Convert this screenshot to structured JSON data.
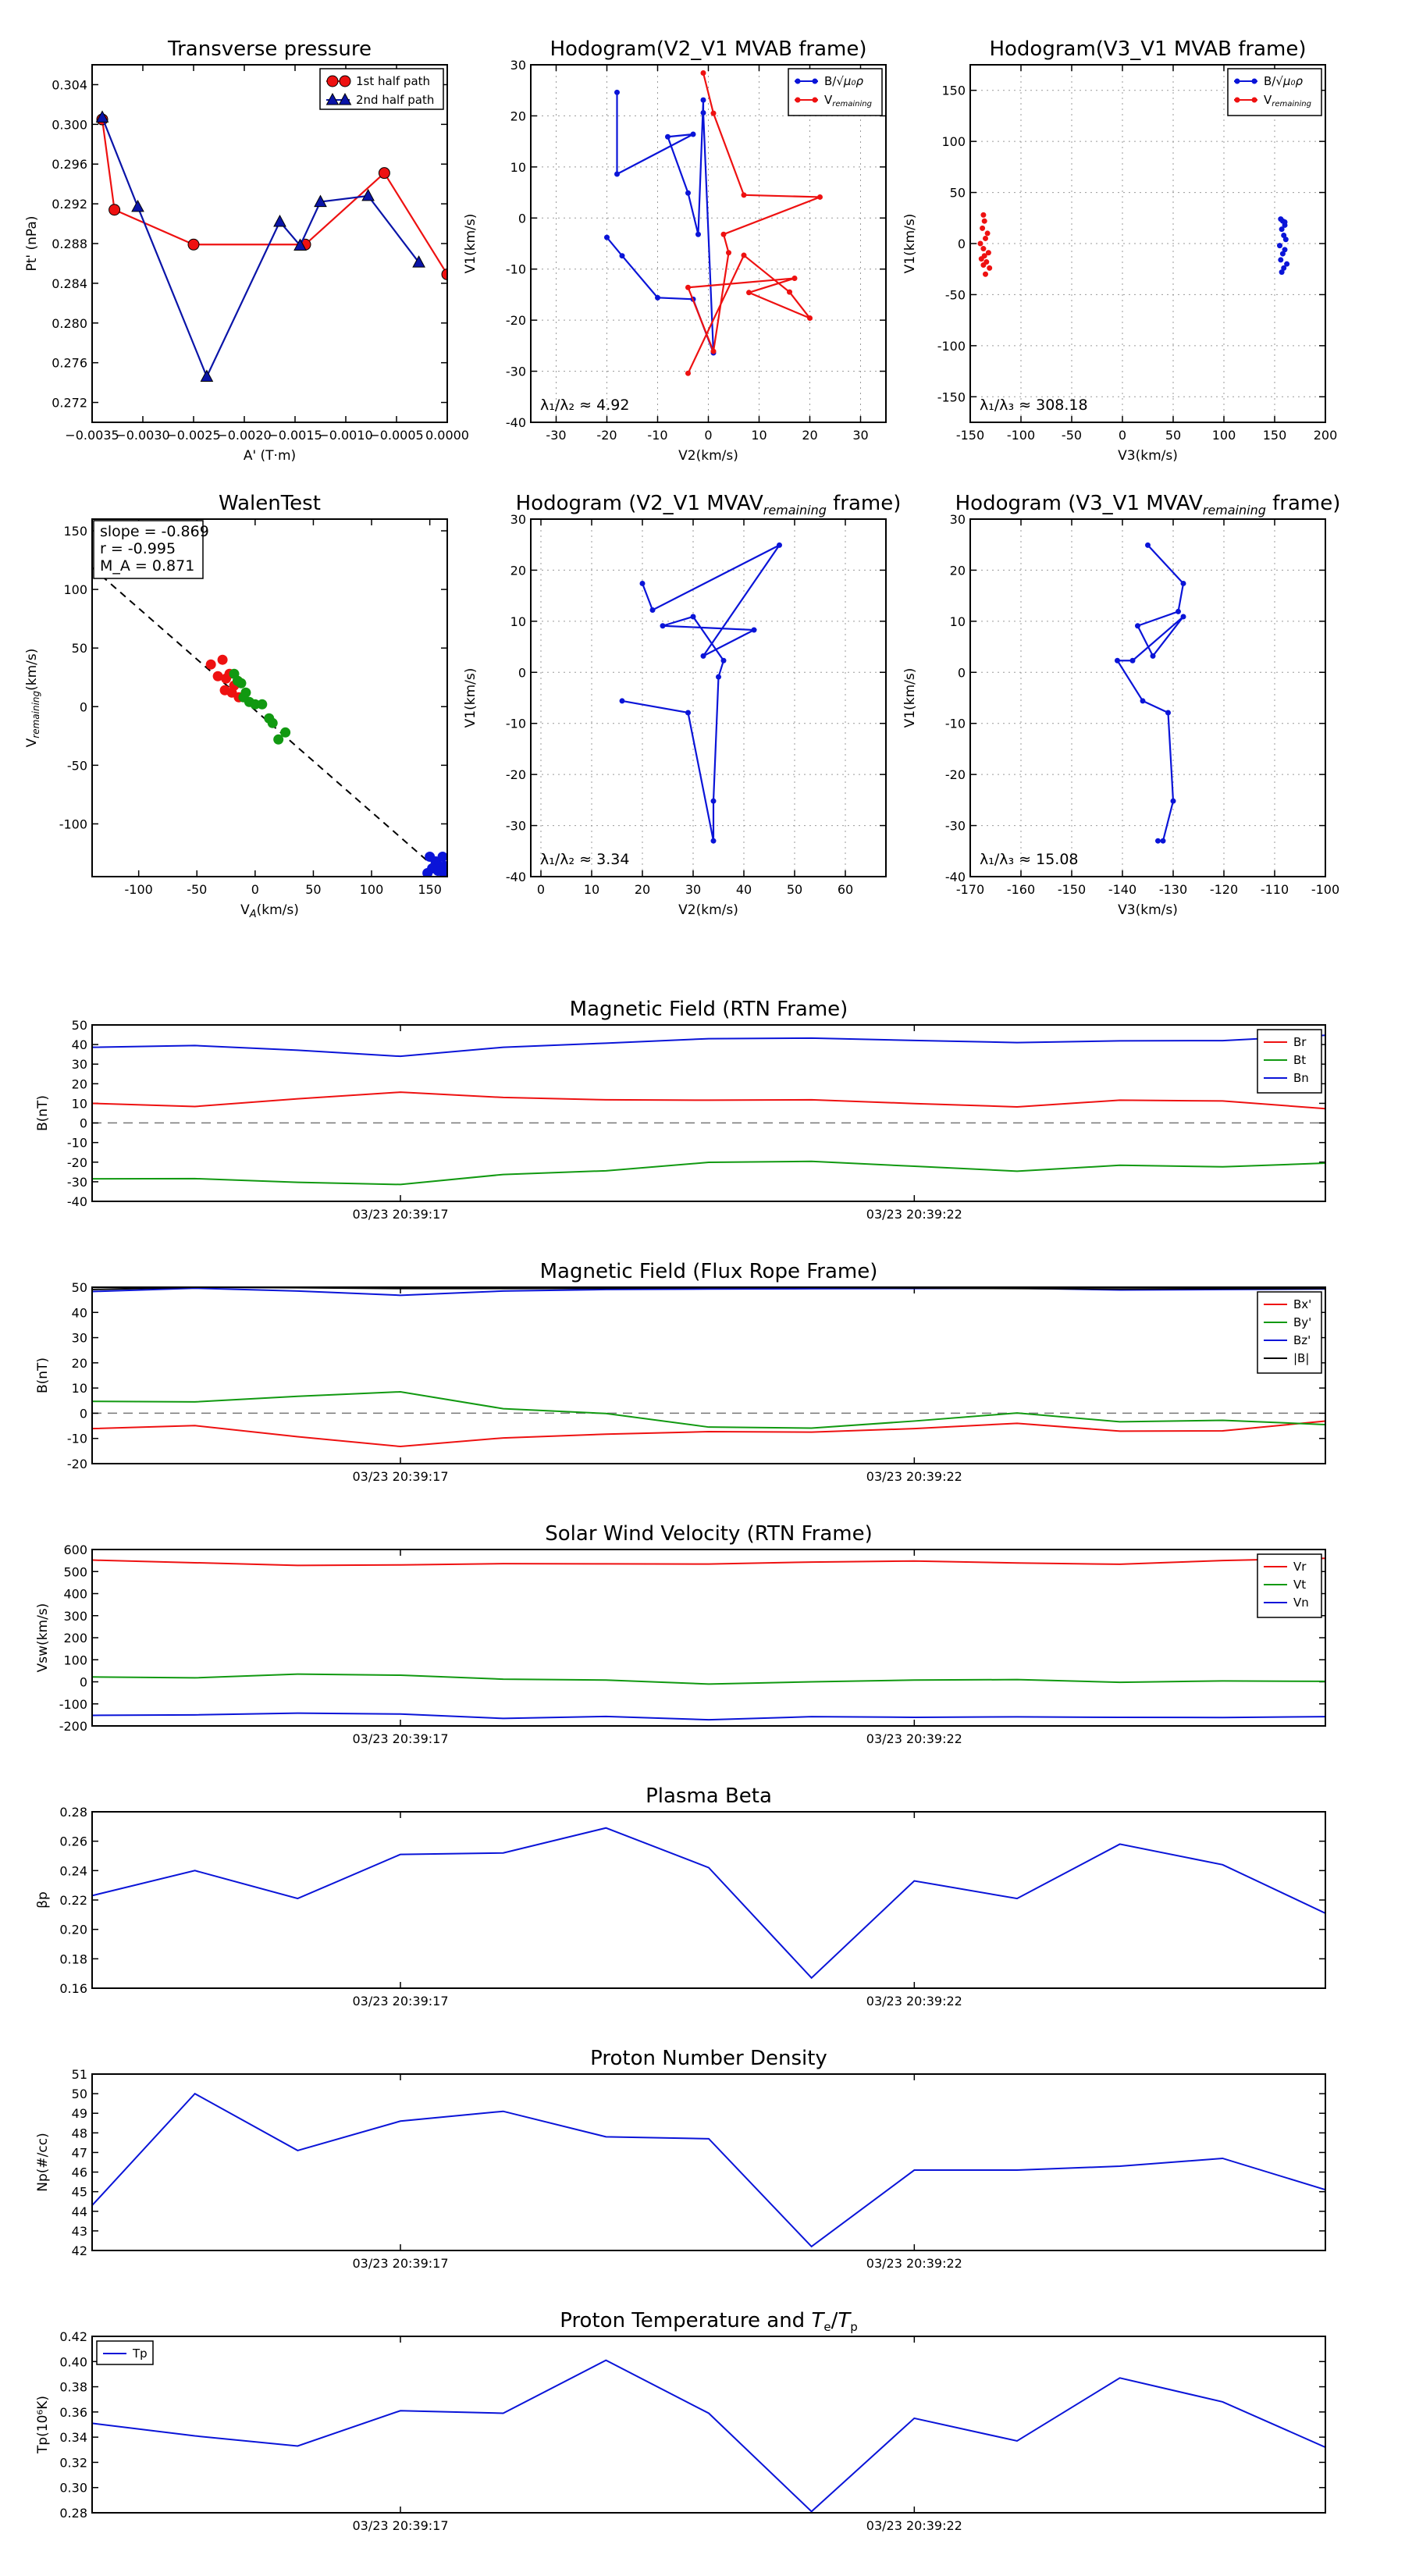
{
  "chart_data": [
    {
      "id": "tp",
      "type": "line",
      "title": "Transverse pressure",
      "xlabel": "A' (T·m)",
      "ylabel": "Pt' (nPa)",
      "xlim": [
        -0.0035,
        0.0
      ],
      "ylim": [
        0.27,
        0.306
      ],
      "xticks": [
        -0.0035,
        -0.003,
        -0.0025,
        -0.002,
        -0.0015,
        -0.001,
        -0.0005,
        0.0
      ],
      "xtick_labels": [
        "−0.0035",
        "−0.0030",
        "−0.0025",
        "−0.0020",
        "−0.0015",
        "−0.0010",
        "−0.0005",
        "0.0000"
      ],
      "yticks": [
        0.272,
        0.276,
        0.28,
        0.284,
        0.288,
        0.292,
        0.296,
        0.3,
        0.304
      ],
      "ytick_labels": [
        "0.272",
        "0.276",
        "0.280",
        "0.284",
        "0.288",
        "0.292",
        "0.296",
        "0.300",
        "0.304"
      ],
      "grid": false,
      "legend": "top-right",
      "series": [
        {
          "name": "1st half path",
          "color": "#ee1111",
          "marker": "circle",
          "x": [
            -0.0034,
            -0.00328,
            -0.0025,
            -0.0014,
            -0.00062,
            0.0
          ],
          "y": [
            0.3005,
            0.2914,
            0.2879,
            0.2879,
            0.2951,
            0.2849
          ]
        },
        {
          "name": "2nd half path",
          "color": "#0a14a8",
          "marker": "triangle",
          "x": [
            -0.0034,
            -0.00305,
            -0.00237,
            -0.00165,
            -0.00145,
            -0.00125,
            -0.00078,
            -0.00028
          ],
          "y": [
            0.3007,
            0.2917,
            0.2746,
            0.2902,
            0.2878,
            0.2922,
            0.2928,
            0.2861
          ]
        }
      ]
    },
    {
      "id": "h1",
      "type": "line",
      "title": "Hodogram(V2_V1 MVAB frame)",
      "xlabel": "V2(km/s)",
      "ylabel": "V1(km/s)",
      "xlim": [
        -35,
        35
      ],
      "ylim": [
        -40,
        30
      ],
      "xticks": [
        -30,
        -20,
        -10,
        0,
        10,
        20,
        30
      ],
      "yticks": [
        -40,
        -30,
        -20,
        -10,
        0,
        10,
        20,
        30
      ],
      "grid": true,
      "legend": "top-right",
      "annotation": "λ₁/λ₂ ≈ 4.92",
      "series": [
        {
          "name": "B/√(μ₀ρ)",
          "color": "#0a14d8",
          "marker": "dot",
          "x": [
            -18,
            -18,
            -3,
            -8,
            -4,
            -2,
            -1,
            -1,
            1,
            -3,
            -10,
            -17,
            -20
          ],
          "y": [
            24.6,
            8.6,
            16.4,
            15.9,
            4.9,
            -3.2,
            23.1,
            20.6,
            -26.4,
            -15.9,
            -15.6,
            -7.4,
            -3.8
          ]
        },
        {
          "name": "V_remaining",
          "color": "#ee1111",
          "marker": "dot",
          "x": [
            -1,
            1,
            7,
            22,
            3,
            4,
            1,
            -4,
            17,
            8,
            20,
            16,
            7,
            -4
          ],
          "y": [
            28.4,
            20.5,
            4.5,
            4.1,
            -3.2,
            -6.8,
            -26.1,
            -13.6,
            -11.8,
            -14.6,
            -19.6,
            -14.5,
            -7.3,
            -30.4
          ]
        }
      ]
    },
    {
      "id": "h2",
      "type": "scatter",
      "title": "Hodogram(V3_V1 MVAB frame)",
      "xlabel": "V3(km/s)",
      "ylabel": "V1(km/s)",
      "xlim": [
        -150,
        200
      ],
      "ylim": [
        -175,
        175
      ],
      "xticks": [
        -150,
        -100,
        -50,
        0,
        50,
        100,
        150,
        200
      ],
      "yticks": [
        -150,
        -100,
        -50,
        0,
        50,
        100,
        150
      ],
      "grid": true,
      "legend": "top-right",
      "annotation": "λ₁/λ₃ ≈ 308.18",
      "series": [
        {
          "name": "B/√(μ₀ρ)",
          "color": "#0a14d8",
          "marker": "dot",
          "x": [
            156,
            158,
            160,
            157,
            159,
            161,
            155,
            160,
            158,
            156,
            162,
            159,
            157,
            160
          ],
          "y": [
            24,
            22,
            18,
            14,
            8,
            4,
            -2,
            -6,
            -10,
            -16,
            -20,
            -24,
            -28,
            21
          ]
        },
        {
          "name": "V_remaining",
          "color": "#ee1111",
          "marker": "dot",
          "x": [
            -137,
            -136,
            -138,
            -133,
            -135,
            -140,
            -137,
            -132,
            -136,
            -139,
            -134,
            -137,
            -131,
            -135
          ],
          "y": [
            28,
            22,
            15,
            10,
            5,
            0,
            -5,
            -9,
            -12,
            -15,
            -18,
            -21,
            -24,
            -30
          ]
        }
      ]
    },
    {
      "id": "walen",
      "type": "scatter",
      "title": "WalenTest",
      "xlabel": "V_A(km/s)",
      "ylabel": "V_remaining(km/s)",
      "xlim": [
        -140,
        165
      ],
      "ylim": [
        -145,
        160
      ],
      "xticks": [
        -100,
        -50,
        0,
        50,
        100,
        150
      ],
      "yticks": [
        -100,
        -50,
        0,
        50,
        100,
        150
      ],
      "grid": false,
      "stats": [
        "slope = -0.869",
        "r = -0.995",
        "M_A = 0.871"
      ],
      "fit": {
        "slope": -0.869,
        "intercept": -3
      },
      "series": [
        {
          "name": "red",
          "color": "#ee1111",
          "x": [
            -38,
            -28,
            -32,
            -25,
            -22,
            -18,
            -15,
            -26,
            -20,
            -14
          ],
          "y": [
            36,
            40,
            26,
            24,
            28,
            18,
            22,
            14,
            12,
            8
          ]
        },
        {
          "name": "green",
          "color": "#119911",
          "x": [
            -18,
            -12,
            -8,
            -5,
            0,
            6,
            12,
            15,
            20,
            26,
            -15,
            -10
          ],
          "y": [
            28,
            20,
            12,
            4,
            2,
            2,
            -10,
            -14,
            -28,
            -22,
            22,
            8
          ]
        },
        {
          "name": "blue",
          "color": "#0a14d8",
          "x": [
            150,
            155,
            158,
            160,
            162,
            163,
            161,
            157,
            152,
            148
          ],
          "y": [
            -128,
            -132,
            -136,
            -140,
            -142,
            -136,
            -128,
            -140,
            -138,
            -142
          ]
        }
      ]
    },
    {
      "id": "h3",
      "type": "line",
      "title": "Hodogram (V2_V1 MVAV_remaining frame)",
      "xlabel": "V2(km/s)",
      "ylabel": "V1(km/s)",
      "xlim": [
        -2,
        68
      ],
      "ylim": [
        -40,
        30
      ],
      "xticks": [
        0,
        10,
        20,
        30,
        40,
        50,
        60
      ],
      "yticks": [
        -40,
        -30,
        -20,
        -10,
        0,
        10,
        20,
        30
      ],
      "grid": true,
      "annotation": "λ₁/λ₂ ≈ 3.34",
      "series": [
        {
          "name": "V",
          "color": "#0a14d8",
          "marker": "dot",
          "x": [
            20,
            22,
            47,
            32,
            42,
            24,
            30,
            36,
            35,
            34,
            34,
            29,
            16
          ],
          "y": [
            17.4,
            12.2,
            24.9,
            3.2,
            8.3,
            9.1,
            10.9,
            2.3,
            -0.9,
            -25.2,
            -33,
            -7.9,
            -5.6
          ]
        }
      ]
    },
    {
      "id": "h4",
      "type": "line",
      "title": "Hodogram (V3_V1 MVAV_remaining frame)",
      "xlabel": "V3(km/s)",
      "ylabel": "V1(km/s)",
      "xlim": [
        -170,
        -100
      ],
      "ylim": [
        -40,
        30
      ],
      "xticks": [
        -170,
        -160,
        -150,
        -140,
        -130,
        -120,
        -110,
        -100
      ],
      "yticks": [
        -40,
        -30,
        -20,
        -10,
        0,
        10,
        20,
        30
      ],
      "grid": true,
      "annotation": "λ₁/λ₃ ≈ 15.08",
      "series": [
        {
          "name": "V",
          "color": "#0a14d8",
          "marker": "dot",
          "x": [
            -135,
            -128,
            -129,
            -137,
            -134,
            -128,
            -138,
            -141,
            -136,
            -131,
            -130,
            -132,
            -133
          ],
          "y": [
            24.9,
            17.4,
            11.9,
            9.1,
            3.2,
            10.9,
            2.3,
            2.3,
            -5.6,
            -7.9,
            -25.2,
            -33,
            -33
          ]
        }
      ]
    },
    {
      "id": "mag_rtn",
      "type": "line",
      "title": "Magnetic Field (RTN Frame)",
      "ylabel": "B(nT)",
      "xlim": [
        0,
        12
      ],
      "ylim": [
        -40,
        50
      ],
      "yticks": [
        -40,
        -30,
        -20,
        -10,
        0,
        10,
        20,
        30,
        40,
        50
      ],
      "xtick_pos": [
        3,
        8
      ],
      "xtick_labels": [
        "03/23 20:39:17",
        "03/23 20:39:22"
      ],
      "zero_line": true,
      "legend": "top-right",
      "series": [
        {
          "name": "Br",
          "color": "#ee1111",
          "y": [
            10,
            8.4,
            12.3,
            15.7,
            13,
            11.8,
            11.6,
            11.8,
            9.9,
            8.2,
            11.6,
            11.2,
            7.3
          ]
        },
        {
          "name": "Bt",
          "color": "#119911",
          "y": [
            -28.5,
            -28.4,
            -30.3,
            -31.4,
            -26.3,
            -24.4,
            -20.1,
            -19.6,
            -22.1,
            -24.6,
            -21.6,
            -22.4,
            -20.5
          ]
        },
        {
          "name": "Bn",
          "color": "#0a14d8",
          "y": [
            38.6,
            39.5,
            37.1,
            34,
            38.6,
            40.7,
            43,
            43.3,
            42.1,
            41,
            41.9,
            42,
            44.7
          ]
        }
      ]
    },
    {
      "id": "mag_fr",
      "type": "line",
      "title": "Magnetic Field (Flux Rope Frame)",
      "ylabel": "B(nT)",
      "xlim": [
        0,
        12
      ],
      "ylim": [
        -20,
        50
      ],
      "yticks": [
        -20,
        -10,
        0,
        10,
        20,
        30,
        40,
        50
      ],
      "xtick_pos": [
        3,
        8
      ],
      "xtick_labels": [
        "03/23 20:39:17",
        "03/23 20:39:22"
      ],
      "zero_line": true,
      "legend": "top-right",
      "series": [
        {
          "name": "Bx'",
          "color": "#ee1111",
          "y": [
            -6.1,
            -4.9,
            -9.3,
            -13.2,
            -9.8,
            -8.3,
            -7.3,
            -7.5,
            -6.1,
            -4,
            -7.1,
            -7,
            -3.1
          ]
        },
        {
          "name": "By'",
          "color": "#119911",
          "y": [
            4.7,
            4.5,
            6.7,
            8.5,
            1.8,
            -0.1,
            -5.5,
            -5.9,
            -3.1,
            0.1,
            -3.4,
            -2.8,
            -4.5
          ]
        },
        {
          "name": "Bz'",
          "color": "#0a14d8",
          "y": [
            48.3,
            49.6,
            48.5,
            46.8,
            48.5,
            49.1,
            49.3,
            49.4,
            49.5,
            49.6,
            48.9,
            49.1,
            49.3
          ]
        },
        {
          "name": "|B|",
          "color": "#000000",
          "y": [
            49.1,
            50,
            49.8,
            49.5,
            49.5,
            49.6,
            49.8,
            49.9,
            49.7,
            49.5,
            49.3,
            49.4,
            49.5
          ]
        }
      ]
    },
    {
      "id": "vsw",
      "type": "line",
      "title": "Solar Wind Velocity (RTN Frame)",
      "ylabel": "Vsw(km/s)",
      "xlim": [
        0,
        12
      ],
      "ylim": [
        -200,
        600
      ],
      "yticks": [
        -200,
        -100,
        0,
        100,
        200,
        300,
        400,
        500,
        600
      ],
      "xtick_pos": [
        3,
        8
      ],
      "xtick_labels": [
        "03/23 20:39:17",
        "03/23 20:39:22"
      ],
      "legend": "top-right",
      "series": [
        {
          "name": "Vr",
          "color": "#ee1111",
          "y": [
            552,
            540,
            528,
            530,
            536,
            535,
            534,
            543,
            548,
            539,
            533,
            550,
            560
          ]
        },
        {
          "name": "Vt",
          "color": "#119911",
          "y": [
            22,
            18,
            35,
            30,
            12,
            8,
            -10,
            0,
            8,
            10,
            -2,
            4,
            2
          ]
        },
        {
          "name": "Vn",
          "color": "#0a14d8",
          "y": [
            -152,
            -150,
            -142,
            -146,
            -166,
            -157,
            -172,
            -158,
            -161,
            -159,
            -161,
            -162,
            -158
          ]
        }
      ]
    },
    {
      "id": "beta",
      "type": "line",
      "title": "Plasma Beta",
      "ylabel": "βp",
      "xlim": [
        0,
        12
      ],
      "ylim": [
        0.16,
        0.28
      ],
      "yticks": [
        0.16,
        0.18,
        0.2,
        0.22,
        0.24,
        0.26,
        0.28
      ],
      "ytick_labels": [
        "0.16",
        "0.18",
        "0.20",
        "0.22",
        "0.24",
        "0.26",
        "0.28"
      ],
      "xtick_pos": [
        3,
        8
      ],
      "xtick_labels": [
        "03/23 20:39:17",
        "03/23 20:39:22"
      ],
      "series": [
        {
          "name": "beta",
          "color": "#0a14d8",
          "y": [
            0.223,
            0.24,
            0.221,
            0.251,
            0.252,
            0.269,
            0.242,
            0.167,
            0.233,
            0.221,
            0.258,
            0.244,
            0.211
          ]
        }
      ]
    },
    {
      "id": "np",
      "type": "line",
      "title": "Proton Number Density",
      "ylabel": "Np(#/cc)",
      "xlim": [
        0,
        12
      ],
      "ylim": [
        42,
        51
      ],
      "yticks": [
        42,
        43,
        44,
        45,
        46,
        47,
        48,
        49,
        50,
        51
      ],
      "xtick_pos": [
        3,
        8
      ],
      "xtick_labels": [
        "03/23 20:39:17",
        "03/23 20:39:22"
      ],
      "series": [
        {
          "name": "Np",
          "color": "#0a14d8",
          "y": [
            44.3,
            50,
            47.1,
            48.6,
            49.1,
            47.8,
            47.7,
            42.2,
            46.1,
            46.1,
            46.3,
            46.7,
            45.1
          ]
        }
      ]
    },
    {
      "id": "tp_temp",
      "type": "line",
      "title": "Proton Temperature and Te/Tp",
      "ylabel": "Tp(10⁶K)",
      "xlim": [
        0,
        12
      ],
      "ylim": [
        0.28,
        0.42
      ],
      "yticks": [
        0.28,
        0.3,
        0.32,
        0.34,
        0.36,
        0.38,
        0.4,
        0.42
      ],
      "ytick_labels": [
        "0.28",
        "0.30",
        "0.32",
        "0.34",
        "0.36",
        "0.38",
        "0.40",
        "0.42"
      ],
      "xtick_pos": [
        3,
        8
      ],
      "xtick_labels": [
        "03/23 20:39:17",
        "03/23 20:39:22"
      ],
      "legend": "top-left",
      "series": [
        {
          "name": "Tp",
          "color": "#0a14d8",
          "y": [
            0.351,
            0.341,
            0.333,
            0.361,
            0.359,
            0.401,
            0.359,
            0.281,
            0.355,
            0.337,
            0.387,
            0.368,
            0.332
          ]
        }
      ]
    }
  ]
}
